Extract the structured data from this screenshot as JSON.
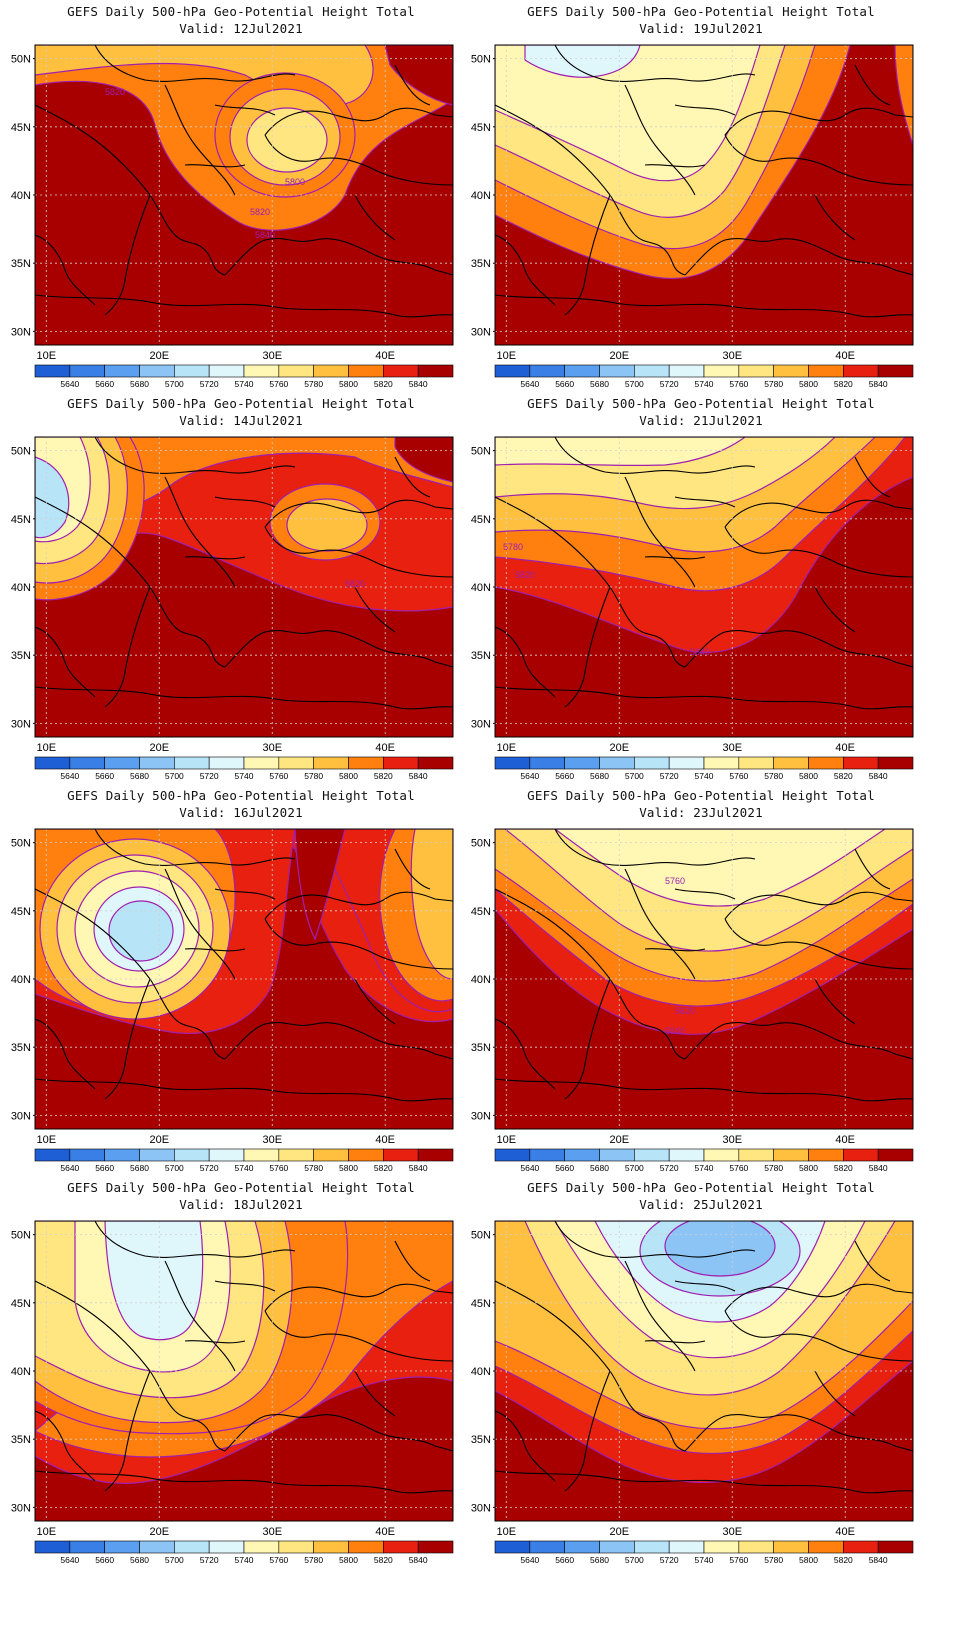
{
  "figure": {
    "colorbar": {
      "levels": [
        "5640",
        "5660",
        "5680",
        "5700",
        "5720",
        "5740",
        "5760",
        "5780",
        "5800",
        "5820",
        "5840"
      ],
      "colors": [
        "#1f5fd6",
        "#3a7fe6",
        "#5a9ff0",
        "#8cc4f5",
        "#b8e4f8",
        "#dff6fb",
        "#fff7b3",
        "#ffe680",
        "#ffc040",
        "#ff7f0f",
        "#e8200f",
        "#a80000"
      ]
    },
    "axes": {
      "lat_labels": [
        "50N",
        "45N",
        "40N",
        "35N",
        "30N"
      ],
      "lon_labels": [
        "10E",
        "20E",
        "30E",
        "40E"
      ]
    }
  },
  "panels": [
    {
      "title": "GEFS Daily 500-hPa Geo-Potential Height Total",
      "valid": "Valid: 12Jul2021",
      "contour_labels": [
        "5820",
        "5800",
        "5820",
        "5840"
      ],
      "chart_data": {
        "type": "heatmap",
        "variable": "500-hPa geopotential height",
        "lat_range": [
          29,
          51
        ],
        "lon_range": [
          9,
          46
        ],
        "min_contour": 5800,
        "max_contour": 5840
      }
    },
    {
      "title": "GEFS Daily 500-hPa Geo-Potential Height Total",
      "valid": "Valid: 19Jul2021",
      "contour_labels": [],
      "chart_data": {
        "type": "heatmap",
        "variable": "500-hPa geopotential height",
        "lat_range": [
          29,
          51
        ],
        "lon_range": [
          9,
          46
        ],
        "min_contour": 5720,
        "max_contour": 5840
      }
    },
    {
      "title": "GEFS Daily 500-hPa Geo-Potential Height Total",
      "valid": "Valid: 14Jul2021",
      "contour_labels": [
        "5820"
      ],
      "chart_data": {
        "type": "heatmap",
        "variable": "500-hPa geopotential height",
        "lat_range": [
          29,
          51
        ],
        "lon_range": [
          9,
          46
        ],
        "min_contour": 5720,
        "max_contour": 5840
      }
    },
    {
      "title": "GEFS Daily 500-hPa Geo-Potential Height Total",
      "valid": "Valid: 21Jul2021",
      "contour_labels": [
        "5780",
        "5820",
        "5840"
      ],
      "chart_data": {
        "type": "heatmap",
        "variable": "500-hPa geopotential height",
        "lat_range": [
          29,
          51
        ],
        "lon_range": [
          9,
          46
        ],
        "min_contour": 5760,
        "max_contour": 5840
      }
    },
    {
      "title": "GEFS Daily 500-hPa Geo-Potential Height Total",
      "valid": "Valid: 16Jul2021",
      "contour_labels": [],
      "chart_data": {
        "type": "heatmap",
        "variable": "500-hPa geopotential height",
        "lat_range": [
          29,
          51
        ],
        "lon_range": [
          9,
          46
        ],
        "min_contour": 5720,
        "max_contour": 5840
      }
    },
    {
      "title": "GEFS Daily 500-hPa Geo-Potential Height Total",
      "valid": "Valid: 23Jul2021",
      "contour_labels": [
        "5760",
        "5820",
        "5840"
      ],
      "chart_data": {
        "type": "heatmap",
        "variable": "500-hPa geopotential height",
        "lat_range": [
          29,
          51
        ],
        "lon_range": [
          9,
          46
        ],
        "min_contour": 5760,
        "max_contour": 5840
      }
    },
    {
      "title": "GEFS Daily 500-hPa Geo-Potential Height Total",
      "valid": "Valid: 18Jul2021",
      "contour_labels": [],
      "chart_data": {
        "type": "heatmap",
        "variable": "500-hPa geopotential height",
        "lat_range": [
          29,
          51
        ],
        "lon_range": [
          9,
          46
        ],
        "min_contour": 5740,
        "max_contour": 5840
      }
    },
    {
      "title": "GEFS Daily 500-hPa Geo-Potential Height Total",
      "valid": "Valid: 25Jul2021",
      "contour_labels": [],
      "chart_data": {
        "type": "heatmap",
        "variable": "500-hPa geopotential height",
        "lat_range": [
          29,
          51
        ],
        "lon_range": [
          9,
          46
        ],
        "min_contour": 5700,
        "max_contour": 5840
      }
    }
  ]
}
